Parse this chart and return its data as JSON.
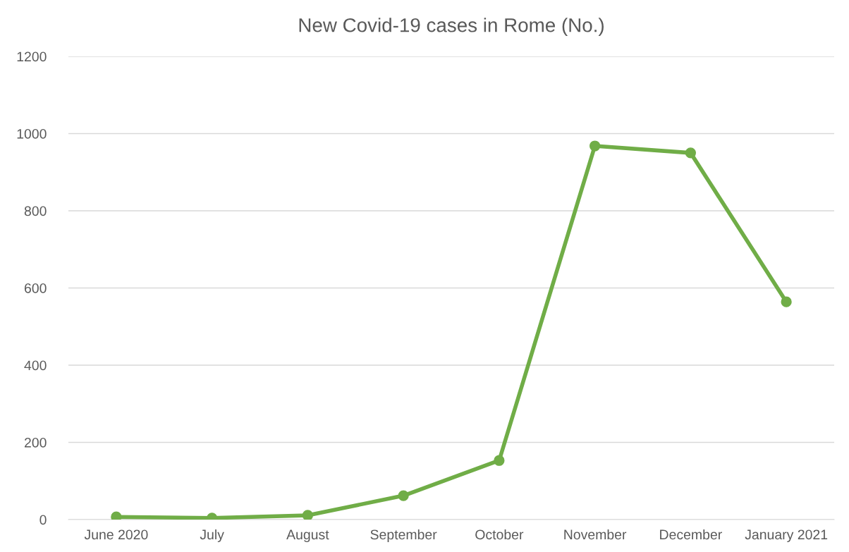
{
  "chart_data": {
    "type": "line",
    "title": "New Covid-19 cases in Rome (No.)",
    "categories": [
      "June 2020",
      "July",
      "August",
      "September",
      "October",
      "November",
      "December",
      "January 2021"
    ],
    "series": [
      {
        "color": "#70ad47",
        "values": [
          7,
          4,
          11,
          62,
          153,
          968,
          950,
          564
        ]
      }
    ],
    "ylim": [
      0,
      1200
    ],
    "yticks": [
      0,
      200,
      400,
      600,
      800,
      1000,
      1200
    ],
    "grid": "y",
    "marker": "circle",
    "line_style": "solid"
  }
}
